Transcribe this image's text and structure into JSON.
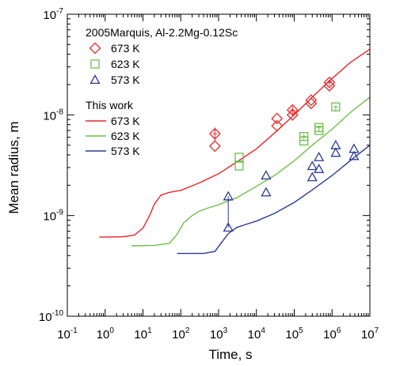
{
  "chart_data": {
    "type": "scatter",
    "xlabel": "Time, s",
    "ylabel": "Mean radius, m",
    "xscale": "log",
    "yscale": "log",
    "xlim": [
      0.1,
      10000000
    ],
    "ylim": [
      1e-10,
      1e-07
    ],
    "x_ticks": [
      {
        "base": "10",
        "exp": "-1",
        "value": 0.1
      },
      {
        "base": "10",
        "exp": "0",
        "value": 1
      },
      {
        "base": "10",
        "exp": "1",
        "value": 10
      },
      {
        "base": "10",
        "exp": "2",
        "value": 100
      },
      {
        "base": "10",
        "exp": "3",
        "value": 1000
      },
      {
        "base": "10",
        "exp": "4",
        "value": 10000
      },
      {
        "base": "10",
        "exp": "5",
        "value": 100000
      },
      {
        "base": "10",
        "exp": "6",
        "value": 1000000
      },
      {
        "base": "10",
        "exp": "7",
        "value": 10000000
      }
    ],
    "y_ticks": [
      {
        "base": "10",
        "exp": "-10",
        "value": 1e-10
      },
      {
        "base": "10",
        "exp": "-9",
        "value": 1e-09
      },
      {
        "base": "10",
        "exp": "-8",
        "value": 1e-08
      },
      {
        "base": "10",
        "exp": "-7",
        "value": 1e-07
      }
    ],
    "legend_position": "top-left",
    "legend_group_titles": [
      "2005Marquis, Al-2.2Mg-0.12Sc",
      "This work"
    ],
    "scatter_series": [
      {
        "name": "673 K",
        "marker": "diamond",
        "color": "#e8272a",
        "points": [
          {
            "x": 800,
            "y": 6.5e-09,
            "low": 5.5e-09,
            "high": 7.5e-09
          },
          {
            "x": 800,
            "y": 4.9e-09
          },
          {
            "x": 35000,
            "y": 9.2e-09
          },
          {
            "x": 35000,
            "y": 7.8e-09
          },
          {
            "x": 90000,
            "y": 1.12e-08,
            "low": 1.02e-08,
            "high": 1.22e-08
          },
          {
            "x": 90000,
            "y": 1e-08
          },
          {
            "x": 280000,
            "y": 1.4e-08
          },
          {
            "x": 280000,
            "y": 1.3e-08
          },
          {
            "x": 850000,
            "y": 2.1e-08,
            "low": 1.95e-08,
            "high": 2.2e-08
          },
          {
            "x": 850000,
            "y": 1.95e-08
          }
        ]
      },
      {
        "name": "623 K",
        "marker": "square",
        "color": "#6cbf4a",
        "points": [
          {
            "x": 3500,
            "y": 3.8e-09
          },
          {
            "x": 3500,
            "y": 3.1e-09
          },
          {
            "x": 180000,
            "y": 6.1e-09,
            "low": 5.6e-09,
            "high": 6.5e-09
          },
          {
            "x": 180000,
            "y": 5.5e-09
          },
          {
            "x": 450000,
            "y": 7.5e-09,
            "low": 6.8e-09,
            "high": 7.8e-09
          },
          {
            "x": 450000,
            "y": 7e-09
          },
          {
            "x": 1250000,
            "y": 1.2e-08,
            "low": 1.1e-08,
            "high": 1.25e-08
          }
        ]
      },
      {
        "name": "573 K",
        "marker": "triangle",
        "color": "#2b3a93",
        "points": [
          {
            "x": 1800,
            "y": 1.55e-09
          },
          {
            "x": 1800,
            "y": 7.6e-10
          },
          {
            "x": 18000,
            "y": 2.5e-09
          },
          {
            "x": 18000,
            "y": 1.7e-09
          },
          {
            "x": 300000,
            "y": 3.1e-09
          },
          {
            "x": 300000,
            "y": 2.4e-09
          },
          {
            "x": 450000,
            "y": 3.8e-09
          },
          {
            "x": 450000,
            "y": 2.9e-09
          },
          {
            "x": 1250000,
            "y": 5e-09
          },
          {
            "x": 1250000,
            "y": 4.2e-09
          },
          {
            "x": 3800000,
            "y": 4.6e-09
          },
          {
            "x": 3800000,
            "y": 3.9e-09
          }
        ]
      }
    ],
    "vertical_connectors": [
      {
        "x": 1800,
        "y1": 7.6e-10,
        "y2": 1.55e-09,
        "color": "#2b3a93"
      }
    ],
    "line_series": [
      {
        "name": "673 K",
        "color": "#e8272a",
        "points": [
          [
            0.7,
            6.1e-10
          ],
          [
            3,
            6.15e-10
          ],
          [
            6,
            6.4e-10
          ],
          [
            10,
            7.5e-10
          ],
          [
            15,
            1e-09
          ],
          [
            20,
            1.3e-09
          ],
          [
            30,
            1.6e-09
          ],
          [
            50,
            1.7e-09
          ],
          [
            100,
            1.78e-09
          ],
          [
            300,
            2.1e-09
          ],
          [
            1000,
            2.6e-09
          ],
          [
            3000,
            3.4e-09
          ],
          [
            10000,
            4.6e-09
          ],
          [
            30000,
            6.6e-09
          ],
          [
            100000,
            1e-08
          ],
          [
            300000,
            1.5e-08
          ],
          [
            1000000,
            2.3e-08
          ],
          [
            3000000,
            3.3e-08
          ],
          [
            10000000,
            4.5e-08
          ]
        ]
      },
      {
        "name": "623 K",
        "color": "#6cbf4a",
        "points": [
          [
            5,
            5e-10
          ],
          [
            20,
            5.05e-10
          ],
          [
            50,
            5.3e-10
          ],
          [
            80,
            6.5e-10
          ],
          [
            120,
            8.5e-10
          ],
          [
            200,
            1e-09
          ],
          [
            300,
            1.1e-09
          ],
          [
            500,
            1.18e-09
          ],
          [
            1000,
            1.28e-09
          ],
          [
            3000,
            1.5e-09
          ],
          [
            10000,
            1.95e-09
          ],
          [
            30000,
            2.5e-09
          ],
          [
            100000,
            3.5e-09
          ],
          [
            300000,
            5e-09
          ],
          [
            1000000,
            7.2e-09
          ],
          [
            3000000,
            1.05e-08
          ],
          [
            10000000,
            1.5e-08
          ]
        ]
      },
      {
        "name": "573 K",
        "color": "#2b3a93",
        "points": [
          [
            80,
            4.2e-10
          ],
          [
            400,
            4.2e-10
          ],
          [
            800,
            4.4e-10
          ],
          [
            1200,
            5.4e-10
          ],
          [
            1800,
            6.6e-10
          ],
          [
            3000,
            7.6e-10
          ],
          [
            6000,
            8.3e-10
          ],
          [
            10000,
            8.8e-10
          ],
          [
            30000,
            1.05e-09
          ],
          [
            100000,
            1.35e-09
          ],
          [
            300000,
            1.8e-09
          ],
          [
            1000000,
            2.5e-09
          ],
          [
            3000000,
            3.5e-09
          ],
          [
            10000000,
            5e-09
          ]
        ]
      }
    ]
  }
}
